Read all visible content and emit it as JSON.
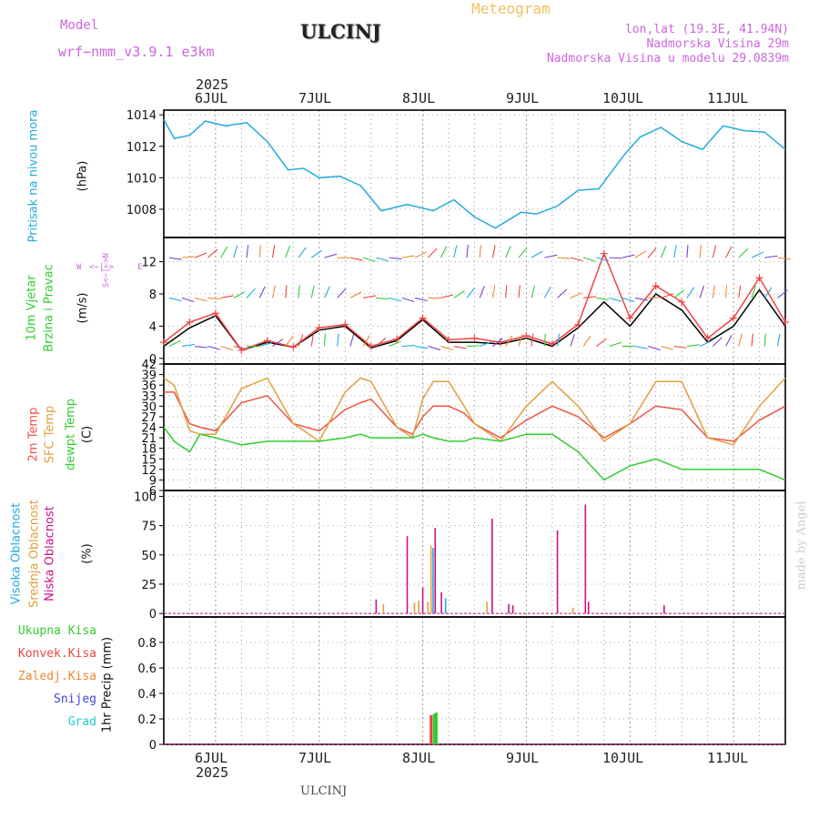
{
  "header": {
    "model_label": "Model",
    "model_name": "wrf−nmm_v3.9.1  e3km",
    "station": "ULCINJ",
    "meteogram": "Meteogram",
    "lonlat": "lon,lat (19.3E, 41.94N)",
    "elevation": "Nadmorska Visina 29m",
    "model_elevation": "Nadmorska Visina u modelu 29.0839m",
    "colors": {
      "purple": "#cc66dd",
      "orange": "#f0c060",
      "dark": "#222222"
    }
  },
  "time_axis": {
    "year": "2025",
    "ticks": [
      "6JUL",
      "7JUL",
      "8JUL",
      "9JUL",
      "10JUL",
      "11JUL"
    ],
    "day_positions": [
      0.5,
      1.5,
      2.5,
      3.5,
      4.5,
      5.5
    ],
    "range_days": [
      0,
      6
    ]
  },
  "footer": {
    "station": "ULCINJ",
    "credit": "made by Angel"
  },
  "panels": {
    "pressure": {
      "label_main": "Pritisak na nivou mora",
      "unit": "(hPa)",
      "color": "#22aadd"
    },
    "wind": {
      "label_green": "10m Vjetar",
      "label_green2": "Brzina i Pravac",
      "unit": "(m/s)",
      "compass": {
        "n": "N",
        "w": "W",
        "e": "E",
        "s": "S",
        "arrow_we": "<−|−>",
        "arrow_sn": "S<−|−>N"
      }
    },
    "temperature": {
      "label_2m": "2m Temp",
      "label_sfc": "SFC Temp",
      "label_dew": "dewpt Temp",
      "unit": "(C)",
      "colors": {
        "t2m": "#ee5544",
        "sfc": "#e0a040",
        "dew": "#33cc33"
      }
    },
    "clouds": {
      "label_high": "Visoka Oblacnost",
      "label_mid": "Srednja Oblacnost",
      "label_low": "Niska Oblacnost",
      "unit": "(%)",
      "colors": {
        "high": "#22aadd",
        "mid": "#e0a040",
        "low": "#cc1188"
      }
    },
    "precip": {
      "legend": [
        {
          "label": "Ukupna Kisa",
          "color": "#33cc33"
        },
        {
          "label": "Konvek.Kisa",
          "color": "#ee4444"
        },
        {
          "label": "Zaledj.Kisa",
          "color": "#ee8833"
        },
        {
          "label": "Snijeg",
          "color": "#4444dd"
        },
        {
          "label": "Grad",
          "color": "#22cccc"
        }
      ],
      "unit": "1hr Precip (mm)"
    }
  },
  "chart_data": [
    {
      "type": "line",
      "title": "Pritisak na nivou mora",
      "ylabel": "(hPa)",
      "ylim": [
        1006.2,
        1014.3
      ],
      "yticks": [
        1008,
        1010,
        1012,
        1014
      ],
      "x": [
        0,
        0.1,
        0.25,
        0.4,
        0.6,
        0.8,
        1.0,
        1.2,
        1.35,
        1.5,
        1.7,
        1.9,
        2.1,
        2.35,
        2.6,
        2.8,
        3.0,
        3.2,
        3.45,
        3.6,
        3.8,
        4.0,
        4.2,
        4.45,
        4.6,
        4.8,
        5.0,
        5.2,
        5.4,
        5.6,
        5.8,
        6.0
      ],
      "series": [
        {
          "name": "pressure",
          "color": "#22aadd",
          "values": [
            1013.7,
            1012.5,
            1012.7,
            1013.6,
            1013.3,
            1013.5,
            1012.3,
            1010.5,
            1010.6,
            1010.0,
            1010.1,
            1009.5,
            1007.9,
            1008.3,
            1007.9,
            1008.6,
            1007.5,
            1006.8,
            1007.8,
            1007.7,
            1008.2,
            1009.2,
            1009.3,
            1011.5,
            1012.6,
            1013.2,
            1012.3,
            1011.8,
            1013.3,
            1013.0,
            1012.9,
            1011.8
          ]
        }
      ]
    },
    {
      "type": "line",
      "title": "10m Vjetar Brzina i Pravac",
      "ylabel": "(m/s)",
      "ylim": [
        -0.7,
        15
      ],
      "yticks": [
        0,
        4,
        8,
        12
      ],
      "x": [
        0,
        0.25,
        0.5,
        0.75,
        1.0,
        1.25,
        1.5,
        1.75,
        2.0,
        2.25,
        2.5,
        2.75,
        3.0,
        3.25,
        3.5,
        3.75,
        4.0,
        4.25,
        4.5,
        4.75,
        5.0,
        5.25,
        5.5,
        5.75,
        6.0
      ],
      "series": [
        {
          "name": "wind speed",
          "color": "#000000",
          "values": [
            1.5,
            3.8,
            5.3,
            1.0,
            2.0,
            1.4,
            3.5,
            4.0,
            1.3,
            2.2,
            4.8,
            2.0,
            2.0,
            1.8,
            2.5,
            1.5,
            3.8,
            7.0,
            4.0,
            8.0,
            6.0,
            2.0,
            4.0,
            8.5,
            4.0
          ]
        },
        {
          "name": "gust",
          "color": "#ee4444",
          "values": [
            2.0,
            4.5,
            5.6,
            1.0,
            2.2,
            1.4,
            3.8,
            4.2,
            1.5,
            2.4,
            5.0,
            2.3,
            2.5,
            2.0,
            2.8,
            1.8,
            4.2,
            13.0,
            5.0,
            9.0,
            7.0,
            2.5,
            5.0,
            10.0,
            4.5
          ]
        }
      ]
    },
    {
      "type": "line",
      "title": "2m Temp / SFC Temp / dewpt Temp",
      "ylabel": "(C)",
      "ylim": [
        6,
        42
      ],
      "yticks": [
        6,
        9,
        12,
        15,
        18,
        21,
        24,
        27,
        30,
        33,
        36,
        39,
        42
      ],
      "x": [
        0,
        0.1,
        0.25,
        0.35,
        0.5,
        0.75,
        1.0,
        1.25,
        1.5,
        1.75,
        1.9,
        2.0,
        2.25,
        2.4,
        2.5,
        2.6,
        2.75,
        2.9,
        3.0,
        3.25,
        3.5,
        3.75,
        4.0,
        4.25,
        4.5,
        4.75,
        5.0,
        5.25,
        5.5,
        5.75,
        6.0
      ],
      "series": [
        {
          "name": "2m Temp",
          "color": "#ee5544",
          "values": [
            34,
            34,
            25,
            24,
            23,
            31,
            33,
            25,
            23,
            29,
            31,
            32,
            24,
            22,
            27,
            30,
            30,
            28,
            25,
            21,
            26,
            30,
            27,
            21,
            25,
            30,
            29,
            21,
            20,
            26,
            30
          ]
        },
        {
          "name": "SFC Temp",
          "color": "#e0a040",
          "values": [
            38,
            36,
            23,
            22,
            22,
            35,
            38,
            25,
            20,
            34,
            38,
            37,
            24,
            21,
            32,
            37,
            37,
            30,
            25,
            20,
            30,
            37,
            30,
            20,
            25,
            37,
            37,
            21,
            19,
            30,
            38
          ]
        },
        {
          "name": "dewpt Temp",
          "color": "#33cc33",
          "values": [
            24,
            20,
            17,
            22,
            21,
            19,
            20,
            20,
            20,
            21,
            22,
            21,
            21,
            21,
            22,
            21,
            20,
            20,
            21,
            20,
            22,
            22,
            17,
            9,
            13,
            15,
            12,
            12,
            12,
            12,
            9
          ]
        }
      ]
    },
    {
      "type": "bar",
      "title": "Visoka / Srednja / Niska Oblacnost",
      "ylabel": "(%)",
      "ylim": [
        -3,
        105
      ],
      "yticks": [
        0,
        25,
        50,
        75,
        100
      ],
      "series": [
        {
          "name": "Niska Oblacnost",
          "color": "#cc1188",
          "x": [
            2.05,
            2.35,
            2.5,
            2.62,
            2.68,
            3.17,
            3.33,
            3.37,
            3.8,
            4.07,
            4.1,
            4.83
          ],
          "values": [
            12,
            66,
            22,
            73,
            18,
            81,
            8,
            7,
            71,
            93,
            10,
            7
          ]
        },
        {
          "name": "Srednja Oblacnost",
          "color": "#e0a040",
          "x": [
            2.12,
            2.42,
            2.46,
            2.55,
            2.58,
            3.12,
            3.95
          ],
          "values": [
            8,
            9,
            11,
            10,
            58,
            10,
            5
          ]
        },
        {
          "name": "Visoka Oblacnost",
          "color": "#22aadd",
          "x": [
            2.6,
            2.72
          ],
          "values": [
            56,
            13
          ]
        }
      ]
    },
    {
      "type": "bar",
      "title": "1hr Precip",
      "ylabel": "1hr Precip (mm)",
      "ylim": [
        0,
        1.0
      ],
      "yticks": [
        0,
        0.2,
        0.4,
        0.6,
        0.8
      ],
      "series": [
        {
          "name": "Konvek.Kisa",
          "color": "#ee4444",
          "x": [
            2.58
          ],
          "values": [
            0.23
          ]
        },
        {
          "name": "Ukupna Kisa",
          "color": "#33cc33",
          "x": [
            2.61
          ],
          "values": [
            0.24
          ]
        },
        {
          "name": "Ukupna Kisa 2",
          "color": "#33cc33",
          "x": [
            2.63
          ],
          "values": [
            0.25
          ]
        }
      ]
    }
  ]
}
